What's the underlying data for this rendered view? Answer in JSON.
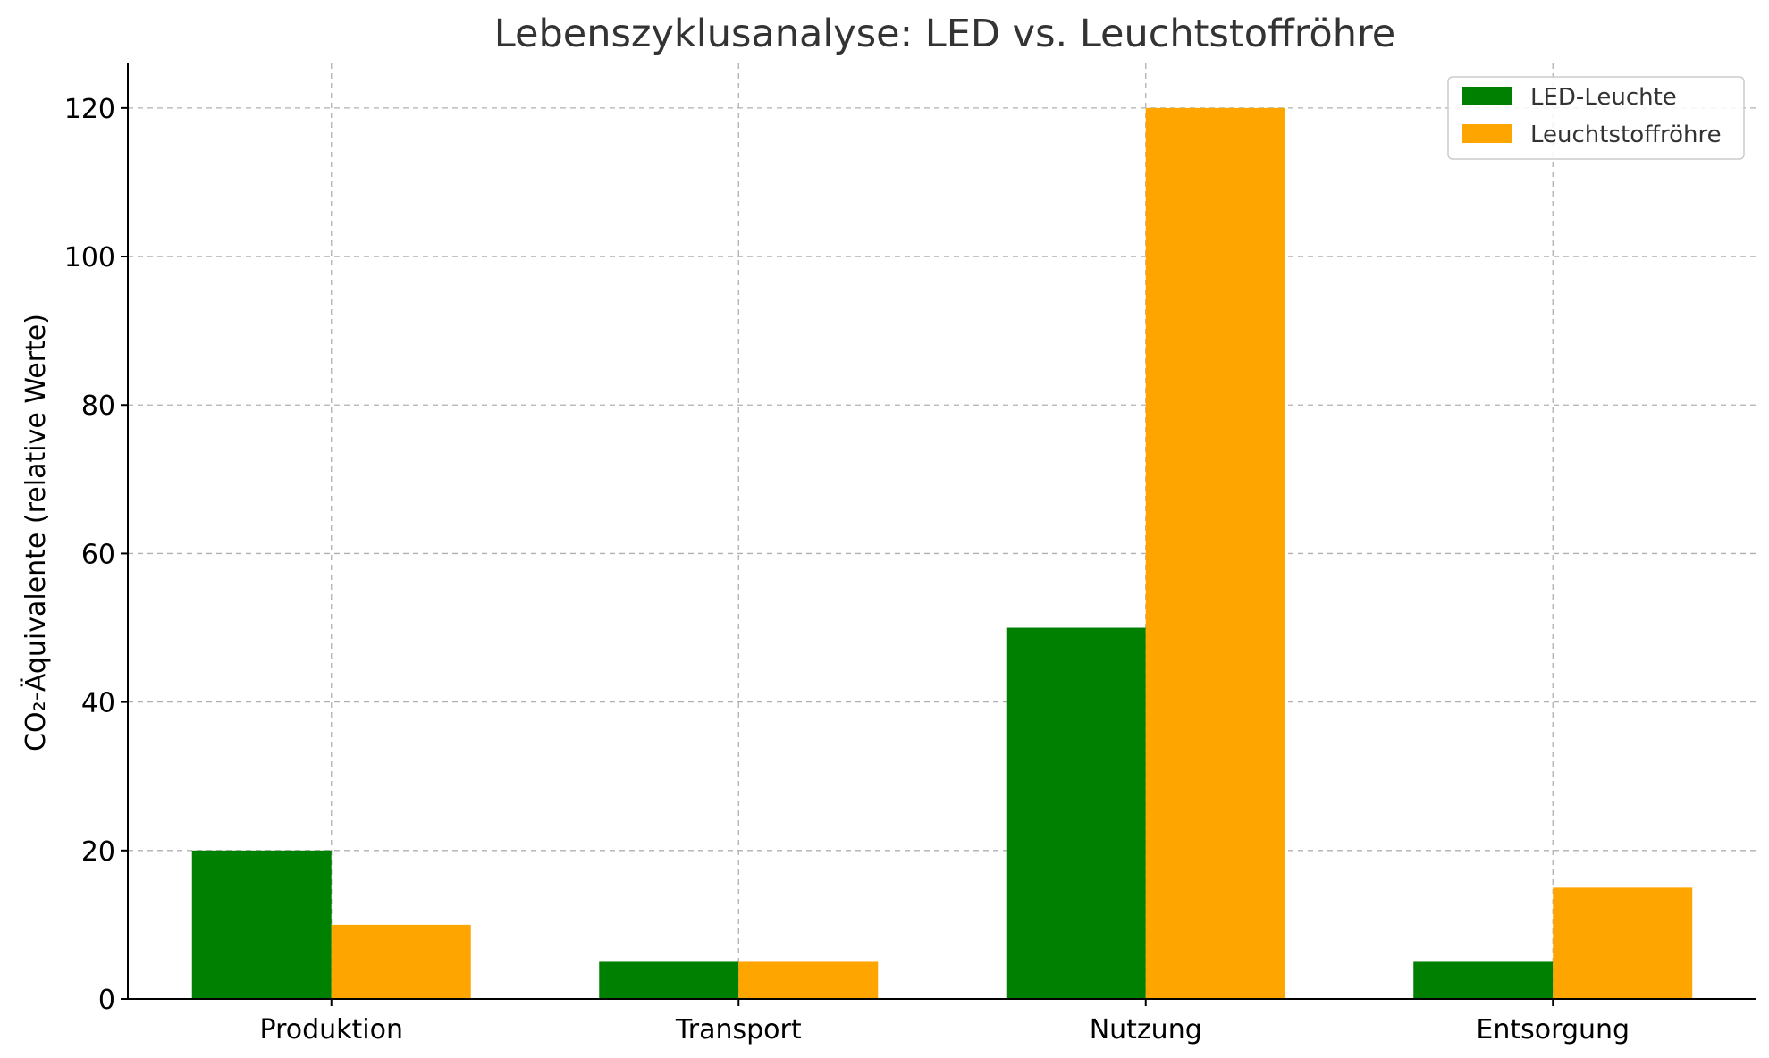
{
  "chart_data": {
    "type": "bar",
    "title": "Lebenszyklusanalyse: LED vs. Leuchtstoffröhre",
    "xlabel": "",
    "ylabel": "CO₂-Äquivalente (relative Werte)",
    "categories": [
      "Produktion",
      "Transport",
      "Nutzung",
      "Entsorgung"
    ],
    "series": [
      {
        "name": "LED-Leuchte",
        "color": "#008000",
        "values": [
          20,
          5,
          50,
          5
        ]
      },
      {
        "name": "Leuchtstoffröhre",
        "color": "#FFA500",
        "values": [
          10,
          5,
          120,
          15
        ]
      }
    ],
    "ylim": [
      0,
      126
    ],
    "yticks": [
      "0",
      "20",
      "40",
      "60",
      "80",
      "100",
      "120"
    ],
    "grid": true,
    "legend_position": "top-right"
  }
}
